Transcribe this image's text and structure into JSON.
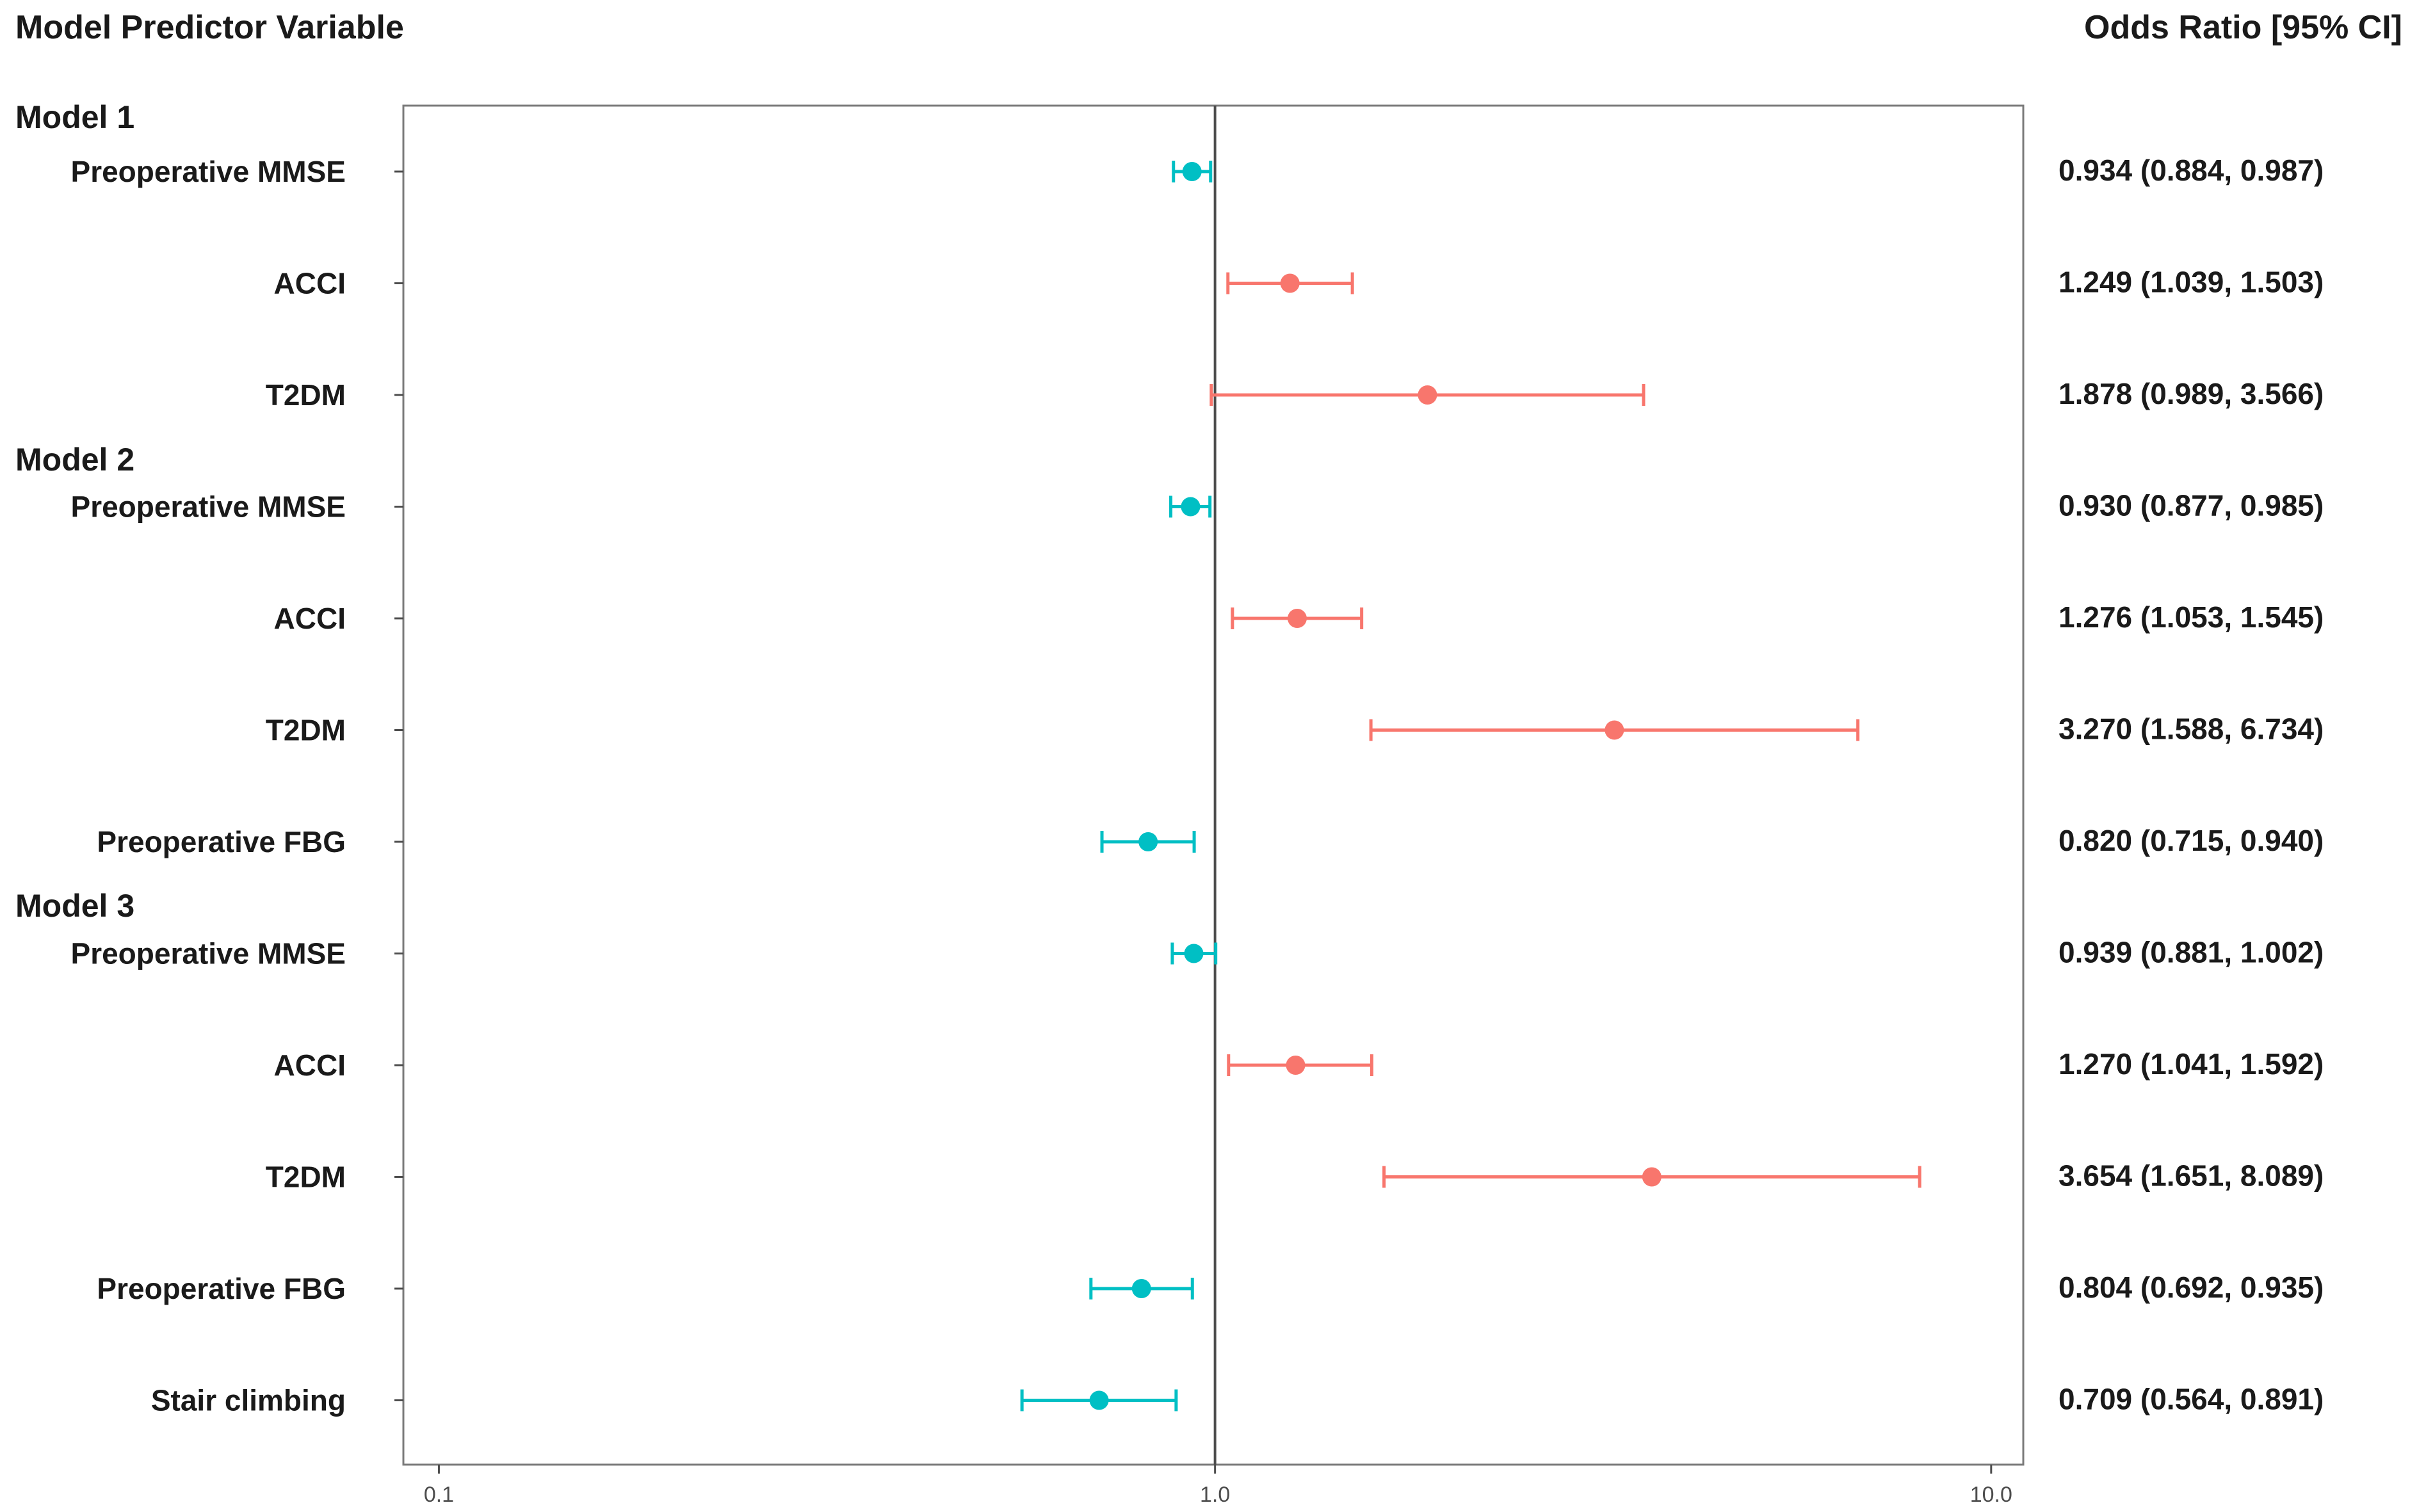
{
  "chart_data": {
    "type": "forest",
    "header_left": "Model Predictor Variable",
    "header_right": "Odds Ratio [95% CI]",
    "x_scale": "log",
    "x_ticks": [
      0.1,
      1.0,
      10.0
    ],
    "x_tick_labels": [
      "0.1",
      "1.0",
      "10.0"
    ],
    "xlim": [
      0.09,
      11.0
    ],
    "reference_line": 1.0,
    "colors": {
      "below_one": "#00BFC4",
      "above_one": "#F8766D"
    },
    "groups": [
      {
        "label": "Model 1",
        "rows": [
          {
            "label": "Preoperative MMSE",
            "or": 0.934,
            "lo": 0.884,
            "hi": 0.987,
            "text": "0.934 (0.884, 0.987)"
          },
          {
            "label": "ACCI",
            "or": 1.249,
            "lo": 1.039,
            "hi": 1.503,
            "text": "1.249 (1.039, 1.503)"
          },
          {
            "label": "T2DM",
            "or": 1.878,
            "lo": 0.989,
            "hi": 3.566,
            "text": "1.878 (0.989, 3.566)"
          }
        ]
      },
      {
        "label": "Model 2",
        "rows": [
          {
            "label": "Preoperative MMSE",
            "or": 0.93,
            "lo": 0.877,
            "hi": 0.985,
            "text": "0.930 (0.877, 0.985)"
          },
          {
            "label": "ACCI",
            "or": 1.276,
            "lo": 1.053,
            "hi": 1.545,
            "text": "1.276 (1.053, 1.545)"
          },
          {
            "label": "T2DM",
            "or": 3.27,
            "lo": 1.588,
            "hi": 6.734,
            "text": "3.270 (1.588, 6.734)"
          },
          {
            "label": "Preoperative FBG",
            "or": 0.82,
            "lo": 0.715,
            "hi": 0.94,
            "text": "0.820 (0.715, 0.940)"
          }
        ]
      },
      {
        "label": "Model 3",
        "rows": [
          {
            "label": "Preoperative MMSE",
            "or": 0.939,
            "lo": 0.881,
            "hi": 1.002,
            "text": "0.939 (0.881, 1.002)"
          },
          {
            "label": "ACCI",
            "or": 1.27,
            "lo": 1.041,
            "hi": 1.592,
            "text": "1.270 (1.041, 1.592)"
          },
          {
            "label": "T2DM",
            "or": 3.654,
            "lo": 1.651,
            "hi": 8.089,
            "text": "3.654 (1.651, 8.089)"
          },
          {
            "label": "Preoperative FBG",
            "or": 0.804,
            "lo": 0.692,
            "hi": 0.935,
            "text": "0.804 (0.692, 0.935)"
          },
          {
            "label": "Stair climbing",
            "or": 0.709,
            "lo": 0.564,
            "hi": 0.891,
            "text": "0.709 (0.564, 0.891)"
          }
        ]
      }
    ]
  }
}
